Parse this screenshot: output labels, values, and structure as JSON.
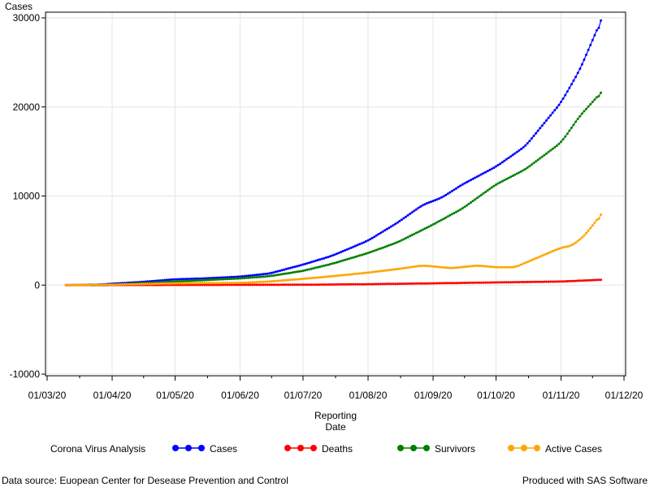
{
  "chart_data": {
    "type": "line",
    "ylabel": "Cases",
    "xlabel_lines": [
      "Reporting",
      "Date"
    ],
    "ylim": [
      -10000,
      30000
    ],
    "yticks": [
      -10000,
      0,
      10000,
      20000,
      30000
    ],
    "x_tick_labels": [
      "01/03/20",
      "01/04/20",
      "01/05/20",
      "01/06/20",
      "01/07/20",
      "01/08/20",
      "01/09/20",
      "01/10/20",
      "01/11/20",
      "01/12/20"
    ],
    "x_tick_dates": [
      "2020-03-01",
      "2020-04-01",
      "2020-05-01",
      "2020-06-01",
      "2020-07-01",
      "2020-08-01",
      "2020-09-01",
      "2020-10-01",
      "2020-11-01",
      "2020-12-01"
    ],
    "grid": true,
    "legend_title": "Corona Virus Analysis",
    "legend_position": "bottom",
    "series": [
      {
        "name": "Cases",
        "color": "#0000ff",
        "points": [
          [
            "2020-03-10",
            0
          ],
          [
            "2020-03-25",
            50
          ],
          [
            "2020-04-01",
            150
          ],
          [
            "2020-04-15",
            350
          ],
          [
            "2020-05-01",
            650
          ],
          [
            "2020-05-15",
            750
          ],
          [
            "2020-06-01",
            950
          ],
          [
            "2020-06-15",
            1300
          ],
          [
            "2020-07-01",
            2300
          ],
          [
            "2020-07-15",
            3300
          ],
          [
            "2020-08-01",
            5000
          ],
          [
            "2020-08-15",
            7000
          ],
          [
            "2020-08-27",
            9000
          ],
          [
            "2020-09-05",
            9800
          ],
          [
            "2020-09-15",
            11300
          ],
          [
            "2020-10-01",
            13300
          ],
          [
            "2020-10-15",
            15600
          ],
          [
            "2020-11-01",
            20500
          ],
          [
            "2020-11-10",
            24200
          ],
          [
            "2020-11-20",
            29700
          ]
        ]
      },
      {
        "name": "Deaths",
        "color": "#ff0000",
        "points": [
          [
            "2020-03-10",
            0
          ],
          [
            "2020-04-01",
            10
          ],
          [
            "2020-05-01",
            20
          ],
          [
            "2020-06-01",
            30
          ],
          [
            "2020-07-01",
            40
          ],
          [
            "2020-08-01",
            100
          ],
          [
            "2020-09-01",
            200
          ],
          [
            "2020-10-01",
            300
          ],
          [
            "2020-11-01",
            400
          ],
          [
            "2020-11-20",
            600
          ]
        ]
      },
      {
        "name": "Survivors",
        "color": "#008000",
        "points": [
          [
            "2020-03-22",
            0
          ],
          [
            "2020-04-01",
            50
          ],
          [
            "2020-05-01",
            400
          ],
          [
            "2020-06-01",
            750
          ],
          [
            "2020-06-15",
            1000
          ],
          [
            "2020-07-01",
            1600
          ],
          [
            "2020-07-15",
            2400
          ],
          [
            "2020-08-01",
            3600
          ],
          [
            "2020-08-15",
            4800
          ],
          [
            "2020-09-01",
            6800
          ],
          [
            "2020-09-15",
            8600
          ],
          [
            "2020-10-01",
            11300
          ],
          [
            "2020-10-15",
            13000
          ],
          [
            "2020-11-01",
            16000
          ],
          [
            "2020-11-10",
            19000
          ],
          [
            "2020-11-20",
            21600
          ]
        ]
      },
      {
        "name": "Active Cases",
        "color": "#ffa500",
        "points": [
          [
            "2020-03-10",
            0
          ],
          [
            "2020-04-01",
            50
          ],
          [
            "2020-05-01",
            200
          ],
          [
            "2020-06-01",
            250
          ],
          [
            "2020-06-15",
            400
          ],
          [
            "2020-07-01",
            700
          ],
          [
            "2020-07-15",
            1000
          ],
          [
            "2020-08-01",
            1400
          ],
          [
            "2020-08-15",
            1800
          ],
          [
            "2020-08-27",
            2200
          ],
          [
            "2020-09-10",
            1900
          ],
          [
            "2020-09-22",
            2200
          ],
          [
            "2020-10-01",
            2000
          ],
          [
            "2020-10-10",
            2000
          ],
          [
            "2020-10-20",
            3000
          ],
          [
            "2020-11-01",
            4200
          ],
          [
            "2020-11-06",
            4400
          ],
          [
            "2020-11-12",
            5500
          ],
          [
            "2020-11-20",
            7900
          ]
        ]
      }
    ]
  },
  "footer": {
    "left": "Data source: Euopean Center for Desease Prevention and Control",
    "right": "Produced with SAS Software"
  }
}
